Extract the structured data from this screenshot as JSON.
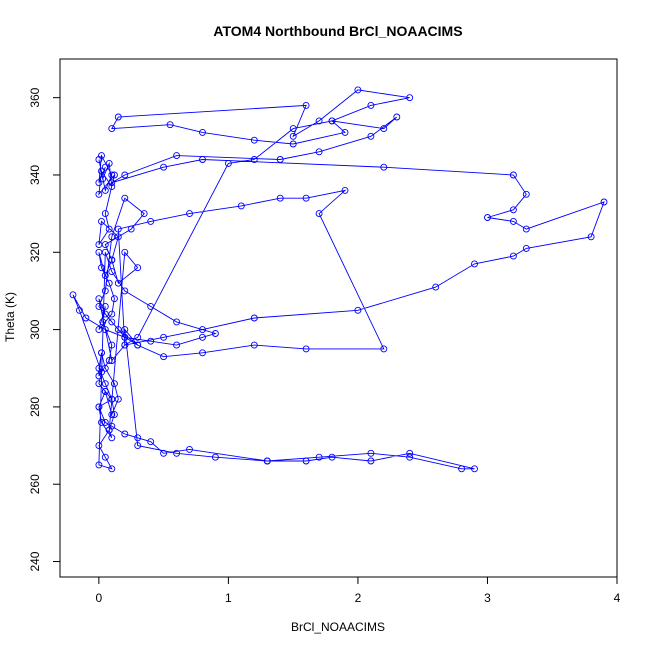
{
  "chart_data": {
    "type": "line",
    "title": "ATOM4 Northbound BrCl_NOAACIMS",
    "xlabel": "BrCl_NOAACIMS",
    "ylabel": "Theta (K)",
    "xlim": [
      -0.3,
      4.0
    ],
    "ylim": [
      236,
      370
    ],
    "xticks": [
      0,
      1,
      2,
      3,
      4
    ],
    "yticks": [
      240,
      260,
      280,
      300,
      320,
      340,
      360
    ],
    "grid": false,
    "legend": "none",
    "line_color": "#0000ff",
    "marker": "open-circle",
    "series": [
      {
        "x": [
          0.05,
          0.0,
          0.02,
          0.1,
          0.05,
          0.0,
          0.03,
          0.08,
          0.1,
          0.02,
          0.0,
          0.12,
          0.05,
          0.08,
          0.0,
          0.02,
          0.15,
          0.1,
          0.05,
          0.0,
          0.02,
          0.08,
          0.12,
          0.1,
          0.0,
          0.05,
          0.03,
          0.1,
          0.08,
          0.0,
          0.02,
          0.05,
          0.12,
          0.15,
          0.1,
          0.05,
          0.0,
          0.02,
          0.1,
          0.08,
          0.2,
          0.3,
          0.15,
          0.1,
          0.05,
          0.25,
          0.35,
          0.2,
          0.1,
          0.05,
          0.0,
          0.1,
          0.2,
          0.3,
          0.15,
          0.05,
          0.0,
          0.1,
          0.2,
          0.3,
          1.0,
          1.2,
          1.5,
          1.8,
          2.1,
          2.4,
          2.0,
          1.7,
          1.5,
          1.6,
          0.15,
          0.1,
          0.55,
          0.8,
          1.2,
          1.5,
          1.9,
          1.8,
          2.2,
          2.3,
          2.1,
          1.7,
          1.4,
          0.6,
          0.2,
          0.1,
          0.5,
          0.8,
          2.2,
          3.2,
          3.3,
          3.2,
          3.0,
          3.2,
          3.3,
          3.9,
          3.8,
          3.3,
          3.2,
          2.9,
          2.6,
          2.0,
          1.2,
          0.8,
          0.5,
          0.2,
          0.15,
          0.4,
          0.7,
          1.1,
          1.4,
          1.6,
          1.9,
          1.7,
          2.2,
          1.6,
          1.2,
          0.8,
          0.5,
          0.3,
          0.2,
          0.3,
          0.6,
          0.9,
          1.3,
          1.6,
          1.8,
          2.1,
          2.4,
          2.9,
          2.8,
          2.4,
          2.1,
          1.7,
          1.3,
          0.7,
          0.5,
          0.4,
          0.3,
          0.2,
          0.1,
          0.05,
          0.0,
          0.1,
          0.05,
          0.0,
          0.02,
          -0.15,
          -0.2,
          -0.1,
          0.05,
          0.2,
          0.4,
          0.6,
          0.8,
          0.9,
          0.6,
          0.4,
          0.2,
          0.1,
          0.05,
          0.0,
          0.1,
          0.05,
          0.0,
          0.08,
          0.12,
          0.1,
          0.05,
          0.0,
          0.02
        ],
        "y": [
          342,
          338,
          345,
          340,
          336,
          344,
          339,
          343,
          337,
          341,
          335,
          340,
          330,
          326,
          322,
          328,
          324,
          318,
          314,
          320,
          316,
          312,
          308,
          304,
          300,
          306,
          302,
          296,
          292,
          288,
          294,
          290,
          286,
          282,
          278,
          284,
          280,
          276,
          272,
          274,
          320,
          316,
          312,
          318,
          322,
          326,
          330,
          334,
          324,
          310,
          306,
          302,
          298,
          296,
          300,
          304,
          308,
          292,
          296,
          298,
          343,
          344,
          352,
          354,
          358,
          360,
          362,
          354,
          350,
          358,
          355,
          352,
          353,
          351,
          349,
          348,
          351,
          354,
          352,
          355,
          350,
          346,
          344,
          345,
          340,
          338,
          342,
          344,
          342,
          340,
          335,
          331,
          329,
          328,
          326,
          333,
          324,
          321,
          319,
          317,
          311,
          305,
          303,
          300,
          298,
          296,
          326,
          328,
          330,
          332,
          334,
          334,
          336,
          330,
          295,
          295,
          296,
          294,
          293,
          296,
          300,
          270,
          268,
          267,
          266,
          266,
          267,
          266,
          268,
          264,
          264,
          267,
          268,
          267,
          266,
          269,
          268,
          271,
          272,
          273,
          275,
          276,
          280,
          282,
          284,
          286,
          289,
          305,
          309,
          303,
          300,
          298,
          297,
          296,
          298,
          299,
          302,
          306,
          310,
          315,
          320,
          265,
          264,
          267,
          270,
          274,
          278,
          282,
          286,
          290,
          294
        ]
      }
    ]
  }
}
